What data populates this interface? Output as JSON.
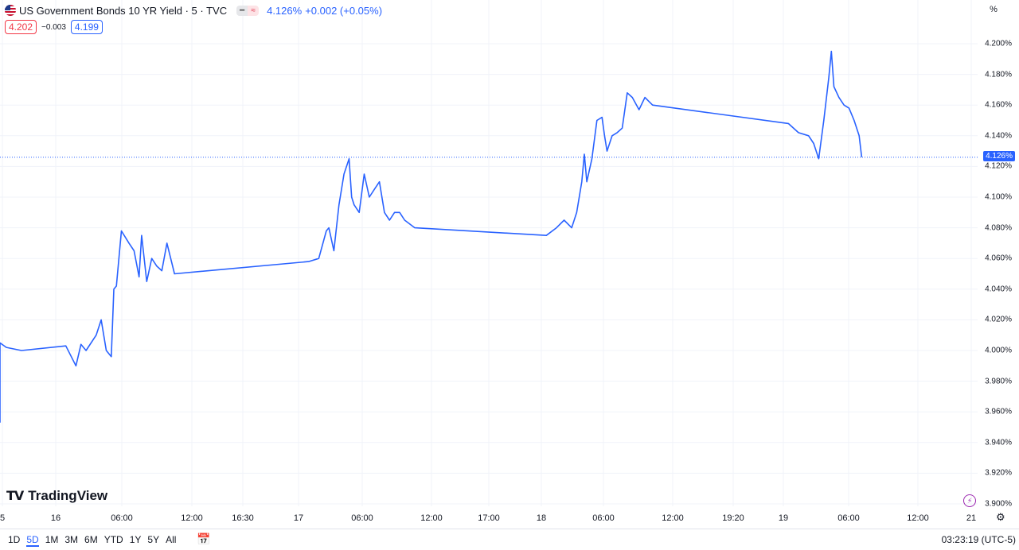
{
  "header": {
    "title": "US Government Bonds 10 YR Yield · 5 · TVC",
    "price": "4.126%",
    "change": "+0.002 (+0.05%)"
  },
  "quotes": {
    "bid": "4.202",
    "spread": "−0.003",
    "ask": "4.199"
  },
  "scale_mode_button": "%",
  "current_price_tag": "4.126%",
  "logo": "TradingView",
  "footer": {
    "ranges": [
      "1D",
      "5D",
      "1M",
      "3M",
      "6M",
      "YTD",
      "1Y",
      "5Y",
      "All"
    ],
    "active_range": "5D",
    "clock": "03:23:19 (UTC-5)"
  },
  "colors": {
    "line": "#2962ff",
    "bid": "#f23645",
    "ask": "#2962ff",
    "grid": "#f0f3fa"
  },
  "chart_data": {
    "type": "line",
    "title": "US Government Bonds 10 YR Yield · 5 · TVC",
    "xlabel": "",
    "ylabel": "",
    "ylim": [
      3.9,
      4.2
    ],
    "y_ticks": [
      "4.200%",
      "4.180%",
      "4.160%",
      "4.140%",
      "4.120%",
      "4.100%",
      "4.080%",
      "4.060%",
      "4.040%",
      "4.020%",
      "4.000%",
      "3.980%",
      "3.960%",
      "3.940%",
      "3.920%",
      "3.900%"
    ],
    "x_ticks": [
      "5",
      "16",
      "06:00",
      "12:00",
      "16:30",
      "17",
      "06:00",
      "12:00",
      "17:00",
      "18",
      "06:00",
      "12:00",
      "19:20",
      "19",
      "06:00",
      "12:00",
      "21"
    ],
    "grid": true,
    "last_value": 4.126,
    "series": [
      {
        "x": [
          "15 16:00",
          "15 16:40",
          "15 18:00",
          "15 20:00",
          "15 23:00",
          "16 02:00",
          "16 04:00",
          "16 05:00",
          "16 06:00",
          "16 08:00",
          "16 09:00",
          "16 10:00",
          "16 11:00",
          "16 11:30",
          "16 12:00",
          "16 13:00",
          "16 14:30",
          "16 15:30",
          "16 16:30",
          "16 17:00",
          "16 18:00",
          "16 19:00",
          "16 20:00",
          "16 21:00",
          "16 22:00",
          "16 23:30",
          "17 02:00",
          "17 04:00",
          "17 05:30",
          "17 06:00",
          "17 07:00",
          "17 08:00",
          "17 09:00",
          "17 10:00",
          "17 10:30",
          "17 11:00",
          "17 12:00",
          "17 13:00",
          "17 14:00",
          "17 15:00",
          "17 16:00",
          "17 17:00",
          "17 18:00",
          "17 19:00",
          "17 20:00",
          "17 21:00",
          "17 23:00",
          "18 01:00",
          "18 03:00",
          "18 04:30",
          "18 06:00",
          "18 07:00",
          "18 08:00",
          "18 08:30",
          "18 09:00",
          "18 10:00",
          "18 11:00",
          "18 12:00",
          "18 12:30",
          "18 13:00",
          "18 14:00",
          "18 15:00",
          "18 16:00",
          "18 17:00",
          "18 18:00",
          "18 19:20",
          "18 20:30",
          "18 22:00",
          "19 01:00",
          "19 03:00",
          "19 05:00",
          "19 06:00",
          "19 07:00",
          "19 08:00",
          "19 09:00",
          "19 09:30",
          "19 10:00",
          "19 11:00",
          "19 12:00",
          "19 13:00",
          "19 14:00",
          "19 15:00",
          "19 15:30"
        ],
        "values": [
          3.953,
          3.997,
          4.005,
          4.002,
          4.0,
          4.003,
          3.99,
          4.004,
          4.0,
          4.01,
          4.02,
          4.0,
          3.996,
          4.04,
          4.042,
          4.078,
          4.07,
          4.065,
          4.048,
          4.075,
          4.045,
          4.06,
          4.055,
          4.052,
          4.07,
          4.05,
          4.058,
          4.06,
          4.078,
          4.08,
          4.065,
          4.095,
          4.115,
          4.125,
          4.1,
          4.095,
          4.09,
          4.115,
          4.1,
          4.105,
          4.11,
          4.09,
          4.085,
          4.09,
          4.09,
          4.085,
          4.08,
          4.075,
          4.08,
          4.085,
          4.08,
          4.09,
          4.11,
          4.128,
          4.11,
          4.125,
          4.15,
          4.152,
          4.14,
          4.13,
          4.14,
          4.142,
          4.145,
          4.168,
          4.165,
          4.157,
          4.165,
          4.16,
          4.148,
          4.142,
          4.14,
          4.135,
          4.125,
          4.15,
          4.178,
          4.195,
          4.172,
          4.165,
          4.16,
          4.158,
          4.15,
          4.14,
          4.126
        ]
      }
    ]
  }
}
